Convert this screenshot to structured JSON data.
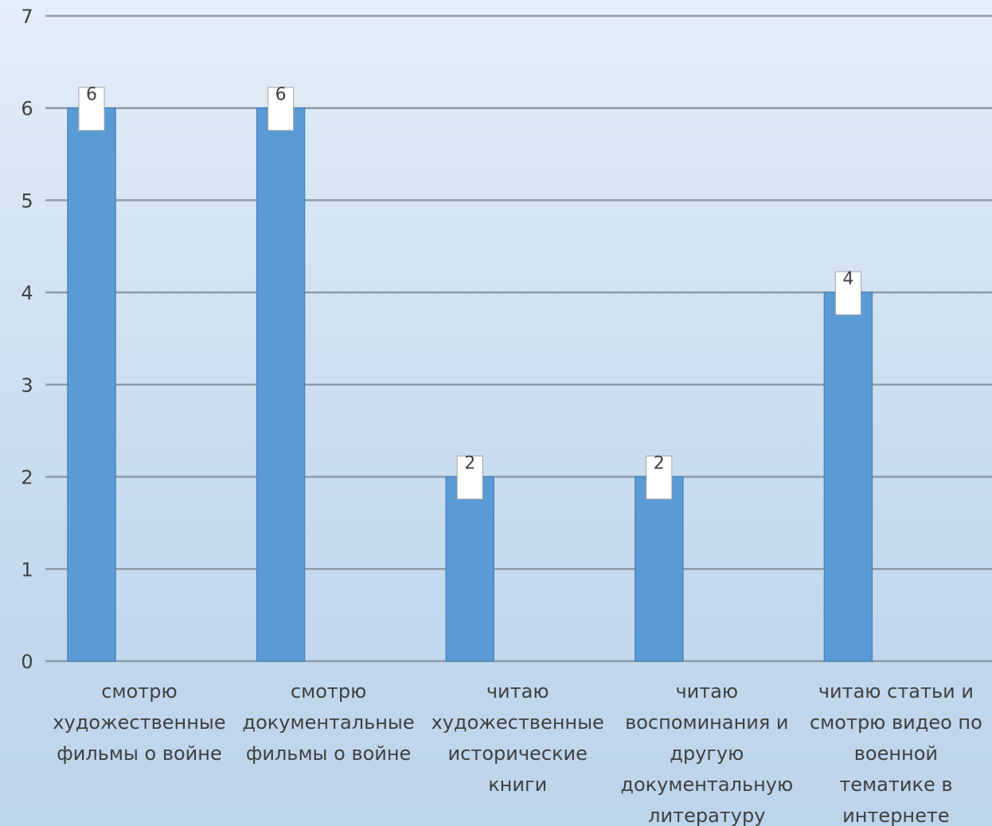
{
  "chart_data": {
    "type": "bar",
    "categories": [
      [
        "смотрю",
        "художественные",
        "фильмы о войне"
      ],
      [
        "смотрю",
        "документальные",
        "фильмы о войне"
      ],
      [
        "читаю",
        "художественные",
        "исторические",
        "книги"
      ],
      [
        "читаю",
        "воспоминания и",
        "другую",
        "документальную",
        "литературу"
      ],
      [
        "читаю статьи и",
        "смотрю видео по",
        "военной",
        "тематике в",
        "интернете"
      ]
    ],
    "values": [
      6,
      6,
      2,
      2,
      4
    ],
    "ylim": [
      0,
      7
    ],
    "yticks": [
      0,
      1,
      2,
      3,
      4,
      5,
      6,
      7
    ],
    "grid": true,
    "data_labels": true,
    "legend": "none",
    "colors": {
      "bar": "#5b9bd5",
      "bar_edge": "#4a86be",
      "grid": "#8e9aa6",
      "label_box": "#ffffff",
      "label_border": "#a6a6a6"
    }
  }
}
